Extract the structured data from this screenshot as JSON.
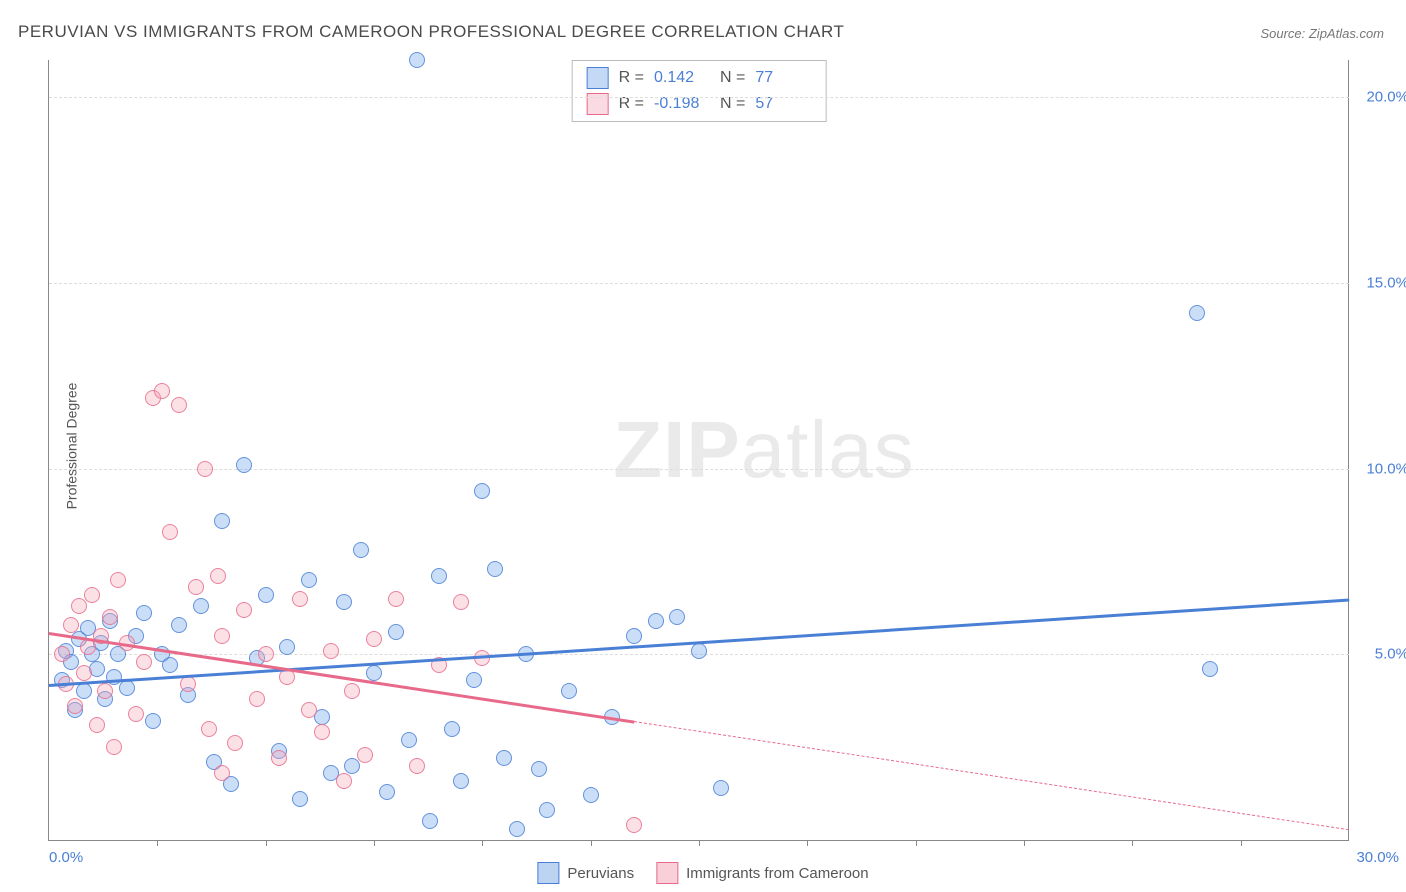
{
  "title": "PERUVIAN VS IMMIGRANTS FROM CAMEROON PROFESSIONAL DEGREE CORRELATION CHART",
  "source": "Source: ZipAtlas.com",
  "ylabel": "Professional Degree",
  "watermark_a": "ZIP",
  "watermark_b": "atlas",
  "chart": {
    "type": "scatter",
    "xlim": [
      0,
      30
    ],
    "ylim": [
      0,
      21
    ],
    "xtick_step": 2.5,
    "ytick_positions": [
      5,
      10,
      15,
      20
    ],
    "ytick_labels": [
      "5.0%",
      "10.0%",
      "15.0%",
      "20.0%"
    ],
    "xlabel_min": "0.0%",
    "xlabel_max": "30.0%",
    "background_color": "#ffffff",
    "grid_color": "#dddddd",
    "axis_color": "#888888",
    "tick_label_color": "#4a7fd6",
    "marker_radius": 8,
    "marker_border_alpha": 0.8,
    "marker_fill_alpha": 0.35,
    "series": [
      {
        "name": "Peruvians",
        "color": "#6aa0e8",
        "border": "#4a7fd6",
        "R": "0.142",
        "N": "77",
        "trend": {
          "x1": 0,
          "y1": 4.2,
          "x2": 30,
          "y2": 6.5,
          "dashed_from_x": null
        },
        "points": [
          [
            0.3,
            4.3
          ],
          [
            0.4,
            5.1
          ],
          [
            0.5,
            4.8
          ],
          [
            0.6,
            3.5
          ],
          [
            0.7,
            5.4
          ],
          [
            0.8,
            4.0
          ],
          [
            0.9,
            5.7
          ],
          [
            1.0,
            5.0
          ],
          [
            1.1,
            4.6
          ],
          [
            1.2,
            5.3
          ],
          [
            1.3,
            3.8
          ],
          [
            1.4,
            5.9
          ],
          [
            1.5,
            4.4
          ],
          [
            1.6,
            5.0
          ],
          [
            1.8,
            4.1
          ],
          [
            2.0,
            5.5
          ],
          [
            2.2,
            6.1
          ],
          [
            2.4,
            3.2
          ],
          [
            2.6,
            5.0
          ],
          [
            2.8,
            4.7
          ],
          [
            3.0,
            5.8
          ],
          [
            3.2,
            3.9
          ],
          [
            3.5,
            6.3
          ],
          [
            3.8,
            2.1
          ],
          [
            4.0,
            8.6
          ],
          [
            4.2,
            1.5
          ],
          [
            4.5,
            10.1
          ],
          [
            4.8,
            4.9
          ],
          [
            5.0,
            6.6
          ],
          [
            5.3,
            2.4
          ],
          [
            5.5,
            5.2
          ],
          [
            5.8,
            1.1
          ],
          [
            6.0,
            7.0
          ],
          [
            6.3,
            3.3
          ],
          [
            6.5,
            1.8
          ],
          [
            6.8,
            6.4
          ],
          [
            7.0,
            2.0
          ],
          [
            7.2,
            7.8
          ],
          [
            7.5,
            4.5
          ],
          [
            7.8,
            1.3
          ],
          [
            8.0,
            5.6
          ],
          [
            8.3,
            2.7
          ],
          [
            8.5,
            21.0
          ],
          [
            8.8,
            0.5
          ],
          [
            9.0,
            7.1
          ],
          [
            9.3,
            3.0
          ],
          [
            9.5,
            1.6
          ],
          [
            9.8,
            4.3
          ],
          [
            10.0,
            9.4
          ],
          [
            10.3,
            7.3
          ],
          [
            10.5,
            2.2
          ],
          [
            10.8,
            0.3
          ],
          [
            11.0,
            5.0
          ],
          [
            11.3,
            1.9
          ],
          [
            11.5,
            0.8
          ],
          [
            12.0,
            4.0
          ],
          [
            12.5,
            1.2
          ],
          [
            13.0,
            3.3
          ],
          [
            13.5,
            5.5
          ],
          [
            14.0,
            5.9
          ],
          [
            14.5,
            6.0
          ],
          [
            15.0,
            5.1
          ],
          [
            15.5,
            1.4
          ],
          [
            26.5,
            14.2
          ],
          [
            26.8,
            4.6
          ]
        ]
      },
      {
        "name": "Immigrants from Cameroon",
        "color": "#f4a6b8",
        "border": "#e86a8a",
        "R": "-0.198",
        "N": "57",
        "trend": {
          "x1": 0,
          "y1": 5.6,
          "x2": 30,
          "y2": 0.3,
          "dashed_from_x": 13.5
        },
        "points": [
          [
            0.3,
            5.0
          ],
          [
            0.4,
            4.2
          ],
          [
            0.5,
            5.8
          ],
          [
            0.6,
            3.6
          ],
          [
            0.7,
            6.3
          ],
          [
            0.8,
            4.5
          ],
          [
            0.9,
            5.2
          ],
          [
            1.0,
            6.6
          ],
          [
            1.1,
            3.1
          ],
          [
            1.2,
            5.5
          ],
          [
            1.3,
            4.0
          ],
          [
            1.4,
            6.0
          ],
          [
            1.5,
            2.5
          ],
          [
            1.6,
            7.0
          ],
          [
            1.8,
            5.3
          ],
          [
            2.0,
            3.4
          ],
          [
            2.2,
            4.8
          ],
          [
            2.4,
            11.9
          ],
          [
            2.6,
            12.1
          ],
          [
            2.8,
            8.3
          ],
          [
            3.0,
            11.7
          ],
          [
            3.2,
            4.2
          ],
          [
            3.4,
            6.8
          ],
          [
            3.6,
            10.0
          ],
          [
            3.7,
            3.0
          ],
          [
            3.9,
            7.1
          ],
          [
            4.0,
            1.8
          ],
          [
            4.0,
            5.5
          ],
          [
            4.3,
            2.6
          ],
          [
            4.5,
            6.2
          ],
          [
            4.8,
            3.8
          ],
          [
            5.0,
            5.0
          ],
          [
            5.3,
            2.2
          ],
          [
            5.5,
            4.4
          ],
          [
            5.8,
            6.5
          ],
          [
            6.0,
            3.5
          ],
          [
            6.3,
            2.9
          ],
          [
            6.5,
            5.1
          ],
          [
            6.8,
            1.6
          ],
          [
            7.0,
            4.0
          ],
          [
            7.3,
            2.3
          ],
          [
            7.5,
            5.4
          ],
          [
            8.0,
            6.5
          ],
          [
            8.5,
            2.0
          ],
          [
            9.0,
            4.7
          ],
          [
            9.5,
            6.4
          ],
          [
            10.0,
            4.9
          ],
          [
            13.5,
            0.4
          ]
        ]
      }
    ]
  },
  "bottom_legend": [
    {
      "label": "Peruvians",
      "fill": "#bcd4f2",
      "border": "#4a7fd6"
    },
    {
      "label": "Immigrants from Cameroon",
      "fill": "#f9d0da",
      "border": "#e86a8a"
    }
  ]
}
